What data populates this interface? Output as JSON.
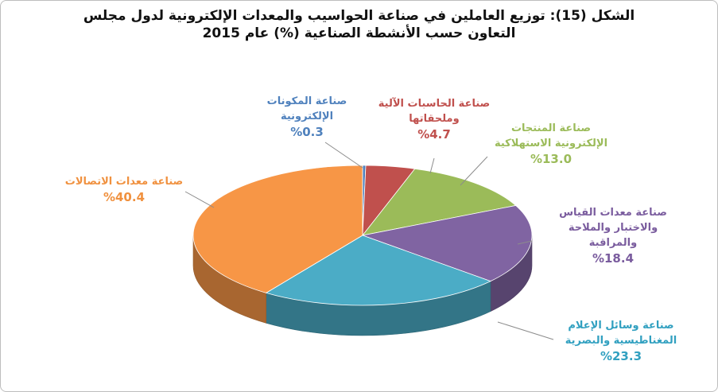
{
  "chart_data": {
    "type": "pie",
    "title_lines": [
      "الشكل (15): توزيع العاملين في صناعة الحواسيب والمعدات الإلكترونية لدول مجلس",
      "التعاون حسب الأنشطة الصناعية (%)  عام 2015"
    ],
    "slices": [
      {
        "label_lines": [
          "صناعة المكونات",
          "الإلكترونية"
        ],
        "value": 0.3,
        "value_text": "%0.3",
        "color": "#4f81bd",
        "label_color": "#4f81bd"
      },
      {
        "label_lines": [
          "صناعة الحاسبات الآلية",
          "وملحقاتها"
        ],
        "value": 4.7,
        "value_text": "%4.7",
        "color": "#c0504d",
        "label_color": "#c0504d"
      },
      {
        "label_lines": [
          "صناعة المنتجات",
          "الإلكترونية الاستهلاكية"
        ],
        "value": 13.0,
        "value_text": "%13.0",
        "color": "#9bbb59",
        "label_color": "#9bbb59"
      },
      {
        "label_lines": [
          "صناعة معدات القياس",
          "والاختبار والملاحة",
          "والمراقبة"
        ],
        "value": 18.4,
        "value_text": "%18.4",
        "color": "#8064a2",
        "label_color": "#7a5c9e"
      },
      {
        "label_lines": [
          "صناعة وسائل الإعلام",
          "المغناطيسية والبصرية"
        ],
        "value": 23.3,
        "value_text": "%23.3",
        "color": "#4bacc6",
        "label_color": "#31a0c0"
      },
      {
        "label_lines": [
          "صناعة معدات الاتصالات"
        ],
        "value": 40.4,
        "value_text": "%40.4",
        "color": "#f79646",
        "label_color": "#f0913f"
      }
    ]
  }
}
